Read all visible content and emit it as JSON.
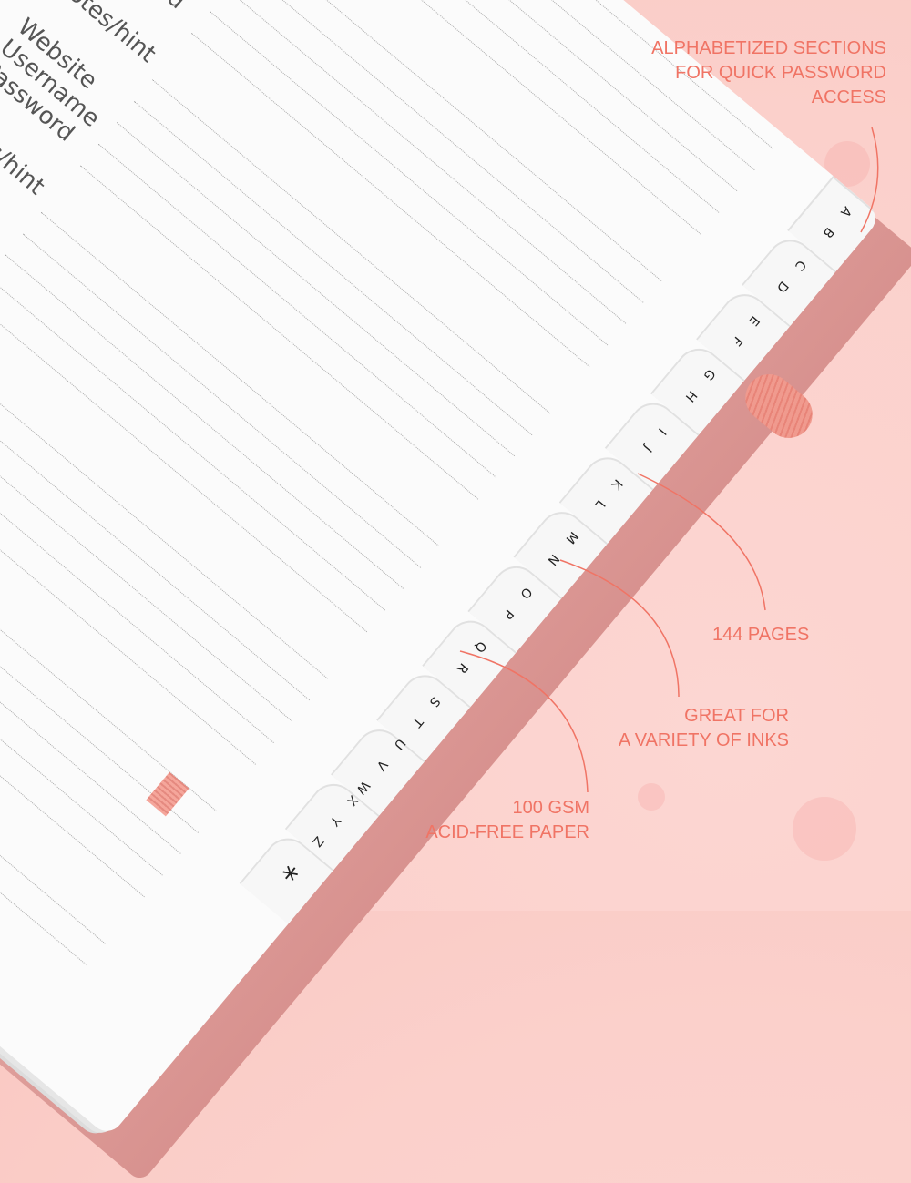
{
  "entry_fields": {
    "website": "Website",
    "username": "Username",
    "password": "Password",
    "notes": "Notes/hint"
  },
  "tabs": [
    "A B",
    "C D",
    "E F",
    "G H",
    "I J",
    "K L",
    "M N",
    "O P",
    "Q R",
    "S T",
    "U V W",
    "X Y Z",
    "*"
  ],
  "annotations": {
    "sections": [
      "ALPHABETIZED SECTIONS",
      "FOR QUICK PASSWORD",
      "ACCESS"
    ],
    "pages": "144 PAGES",
    "inks": [
      "GREAT FOR",
      "A VARIETY OF INKS"
    ],
    "paper": [
      "100 GSM",
      "ACID-FREE  PAPER"
    ]
  },
  "colors": {
    "accent": "#f07465",
    "background": "#fbd0cb",
    "cover": "#e0a3a0",
    "page": "#fbfbfb"
  }
}
